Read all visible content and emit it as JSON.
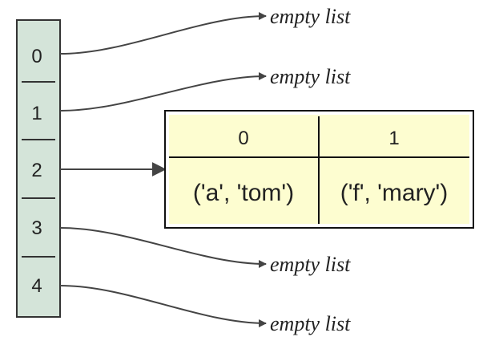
{
  "bucket_array": {
    "fill": "#d4e4d9",
    "stroke": "#333333",
    "slots": [
      {
        "index": "0",
        "target": "empty list"
      },
      {
        "index": "1",
        "target": "empty list"
      },
      {
        "index": "2",
        "target": "entry-table"
      },
      {
        "index": "3",
        "target": "empty list"
      },
      {
        "index": "4",
        "target": "empty list"
      }
    ]
  },
  "entry_table": {
    "fill": "#fdfdd0",
    "stroke": "#111111",
    "columns": [
      "0",
      "1"
    ],
    "cells": [
      "('a', 'tom')",
      "('f', 'mary')"
    ]
  },
  "empty_label": "empty list",
  "arrow_color": "#444444"
}
